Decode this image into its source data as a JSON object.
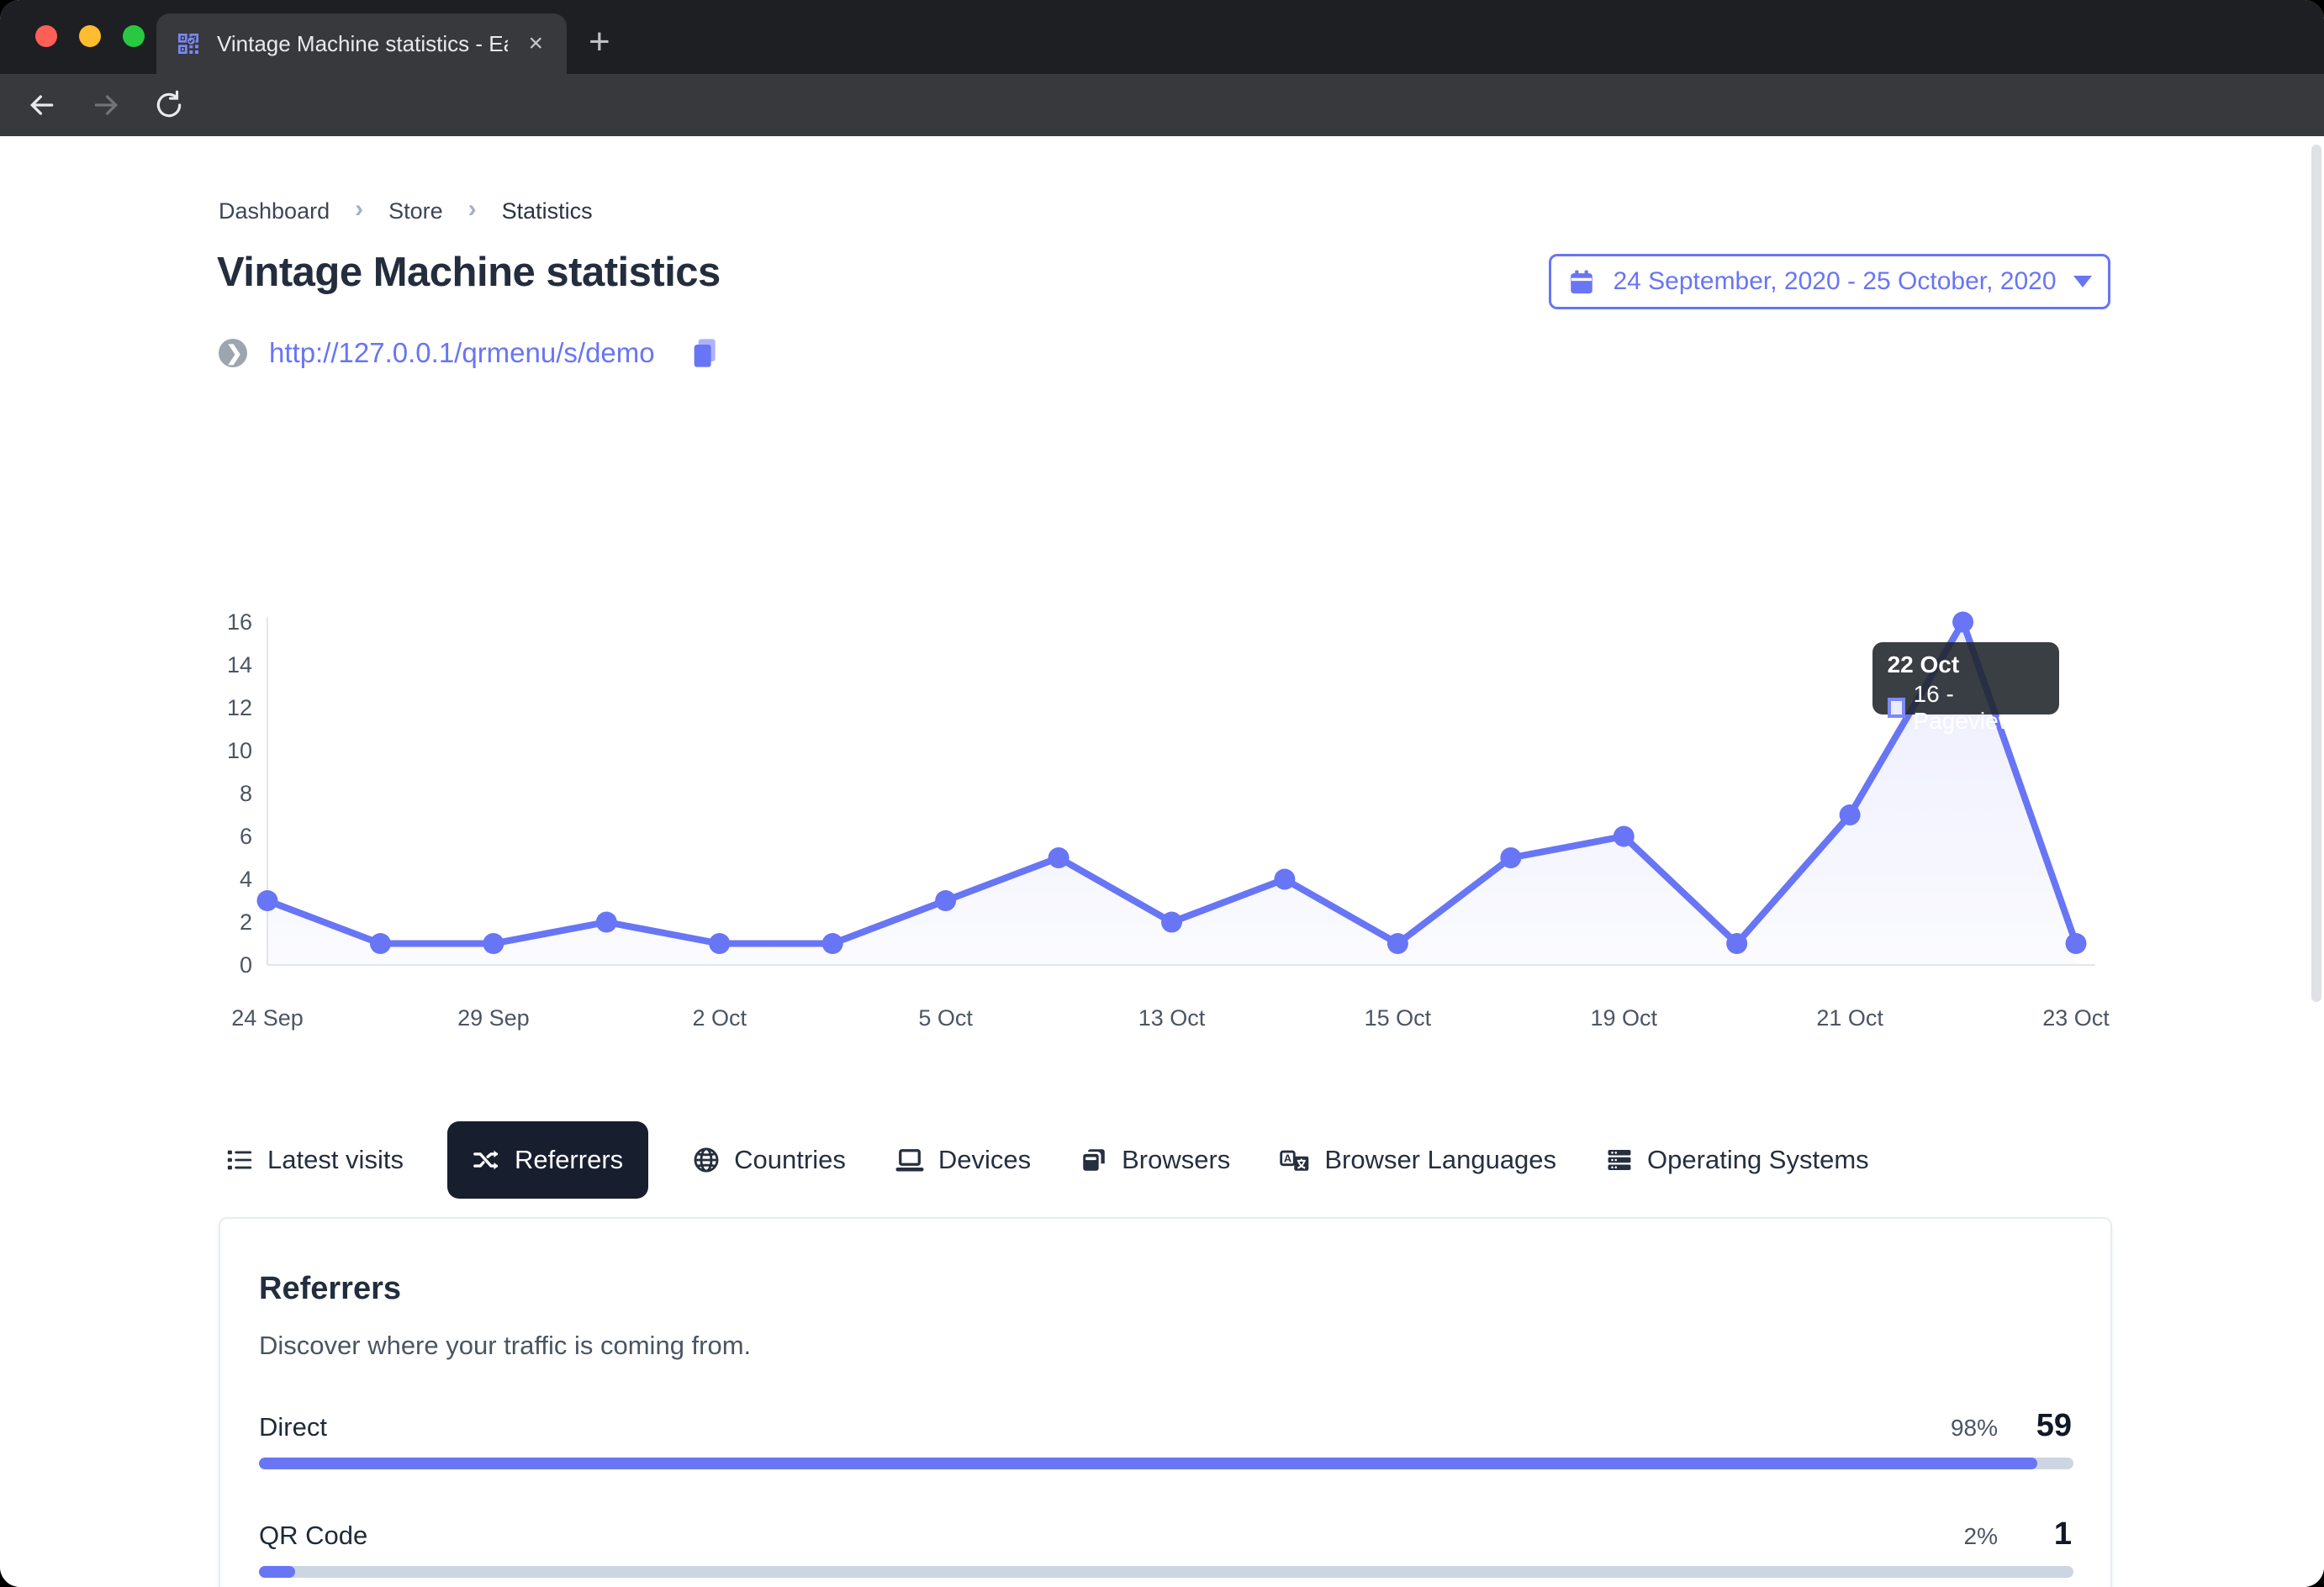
{
  "window": {
    "tab_title": "Vintage Machine statistics - Ea",
    "close_tab": "×",
    "new_tab": "+"
  },
  "breadcrumb": {
    "items": [
      "Dashboard",
      "Store",
      "Statistics"
    ],
    "separator": "›"
  },
  "page": {
    "title": "Vintage Machine statistics",
    "date_range": "24 September, 2020 - 25 October, 2020",
    "store_url": "http://127.0.0.1/qrmenu/s/demo"
  },
  "chart_data": {
    "type": "line",
    "series": [
      {
        "name": "Pageviews",
        "values": [
          3,
          1,
          1,
          2,
          1,
          1,
          3,
          5,
          2,
          4,
          1,
          5,
          6,
          1,
          7,
          16,
          1
        ]
      }
    ],
    "x_tick_labels": [
      "24 Sep",
      "29 Sep",
      "2 Oct",
      "5 Oct",
      "13 Oct",
      "15 Oct",
      "19 Oct",
      "21 Oct",
      "23 Oct"
    ],
    "tick_every": 2,
    "y_ticks": [
      0,
      2,
      4,
      6,
      8,
      10,
      12,
      14,
      16
    ],
    "ylim": [
      0,
      16
    ],
    "grid": false,
    "line_color": "#6875F5",
    "tooltip": {
      "point_index": 15,
      "date": "22 Oct",
      "value_label": "16 - Pageviews"
    }
  },
  "tabs": {
    "items": [
      {
        "label": "Latest visits",
        "active": false
      },
      {
        "label": "Referrers",
        "active": true
      },
      {
        "label": "Countries",
        "active": false
      },
      {
        "label": "Devices",
        "active": false
      },
      {
        "label": "Browsers",
        "active": false
      },
      {
        "label": "Browser Languages",
        "active": false
      },
      {
        "label": "Operating Systems",
        "active": false
      }
    ]
  },
  "referrers_card": {
    "title": "Referrers",
    "subtitle": "Discover where your traffic is coming from.",
    "rows": [
      {
        "label": "Direct",
        "percent": "98%",
        "count": "59",
        "fill": 98
      },
      {
        "label": "QR Code",
        "percent": "2%",
        "count": "1",
        "fill": 2
      }
    ]
  },
  "colors": {
    "accent": "#6875F5",
    "navy": "#252F3F",
    "track": "#CCD6E2"
  }
}
